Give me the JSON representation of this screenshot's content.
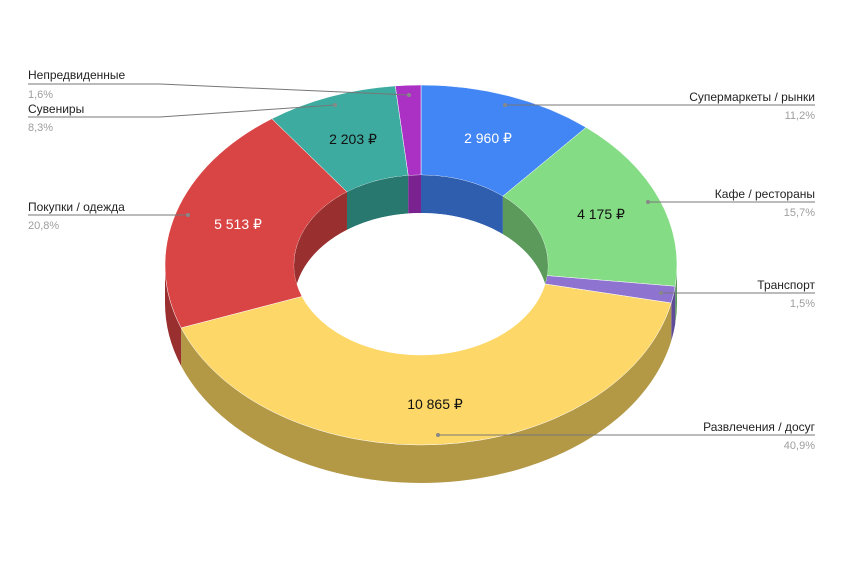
{
  "chart_data": {
    "type": "pie",
    "style": "3d-donut",
    "legend": "labeled",
    "slices": [
      {
        "name": "Супермаркеты / рынки",
        "value": 2960,
        "value_label": "2 960 ₽",
        "percent": "11,2%",
        "color": "#4285f4",
        "side_color": "#2f5eae"
      },
      {
        "name": "Кафе / рестораны",
        "value": 4175,
        "value_label": "4 175 ₽",
        "percent": "15,7%",
        "color": "#84dc84",
        "side_color": "#5c9a5c"
      },
      {
        "name": "Транспорт",
        "value": 398,
        "value_label": null,
        "percent": "1,5%",
        "color": "#8e73d0",
        "side_color": "#5f4c99"
      },
      {
        "name": "Развлечения / досуг",
        "value": 10865,
        "value_label": "10 865 ₽",
        "percent": "40,9%",
        "color": "#fdd868",
        "side_color": "#b39846"
      },
      {
        "name": "Покупки / одежда",
        "value": 5513,
        "value_label": "5 513 ₽",
        "percent": "20,8%",
        "color": "#d94545",
        "side_color": "#9a2f2f"
      },
      {
        "name": "Сувениры",
        "value": 2203,
        "value_label": "2 203 ₽",
        "percent": "8,3%",
        "color": "#3dab9f",
        "side_color": "#287870"
      },
      {
        "name": "Непредвиденные",
        "value": 425,
        "value_label": null,
        "percent": "1,6%",
        "color": "#ab30c4",
        "side_color": "#7a2290"
      }
    ]
  }
}
